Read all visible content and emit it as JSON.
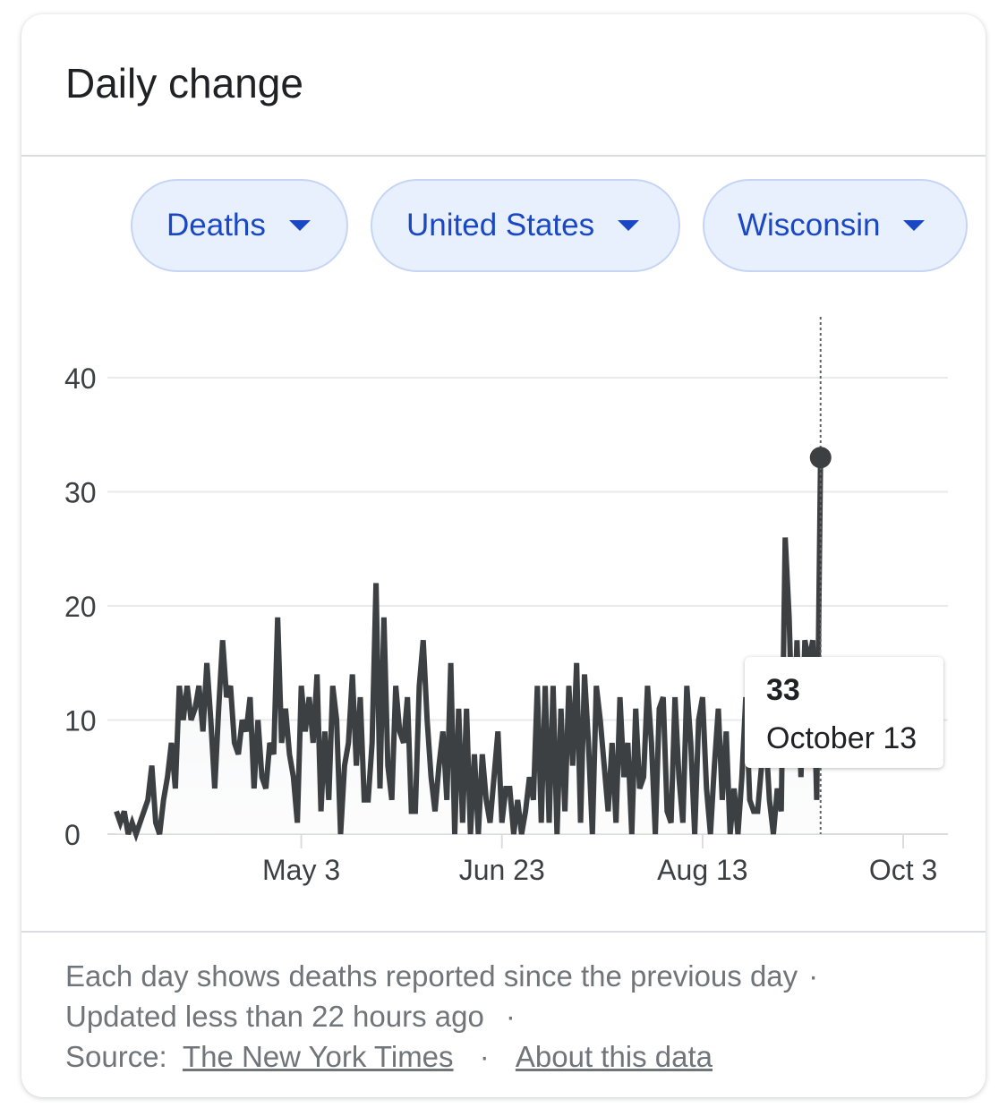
{
  "card": {
    "title": "Daily change"
  },
  "filters": {
    "metric": "Deaths",
    "country": "United States",
    "region": "Wisconsin"
  },
  "tooltip": {
    "value": "33",
    "date": "October 13"
  },
  "footer": {
    "line1": "Each day shows deaths reported since the previous day",
    "line2": "Updated less than 22 hours ago",
    "source_label": "Source:",
    "source_link": "The New York Times",
    "about_link": "About this data",
    "separator": "·"
  },
  "colors": {
    "line": "#3c4043",
    "chip_bg": "#e8f0fe",
    "chip_text": "#1a47c4",
    "grid": "#e8eaed"
  },
  "chart_data": {
    "type": "line",
    "x_ticks": [
      "May 3",
      "Jun 23",
      "Aug 13",
      "Oct 3"
    ],
    "y_ticks": [
      "0",
      "10",
      "20",
      "30",
      "40"
    ],
    "ylim": [
      0,
      40
    ],
    "grid": true,
    "x_start": "2020-03-17",
    "x_end": "2020-10-13",
    "series": [
      {
        "values": [
          2,
          1,
          2,
          0,
          1,
          0,
          1,
          2,
          3,
          6,
          1,
          0,
          3,
          5,
          8,
          4,
          13,
          10,
          13,
          10,
          11,
          13,
          9,
          15,
          10,
          4,
          11,
          17,
          12,
          13,
          8,
          7,
          10,
          9,
          12,
          4,
          10,
          5,
          4,
          8,
          7,
          19,
          8,
          11,
          7,
          5,
          1,
          13,
          9,
          12,
          8,
          14,
          2,
          9,
          3,
          13,
          10,
          0,
          6,
          8,
          14,
          6,
          12,
          3,
          3,
          8,
          22,
          4,
          19,
          6,
          3,
          13,
          9,
          8,
          12,
          2,
          2,
          13,
          17,
          10,
          5,
          2,
          6,
          9,
          3,
          15,
          0,
          11,
          1,
          11,
          0,
          7,
          0,
          7,
          3,
          1,
          5,
          9,
          1,
          4,
          4,
          0,
          3,
          0,
          2,
          5,
          3,
          13,
          1,
          13,
          1,
          13,
          0,
          11,
          2,
          13,
          6,
          15,
          1,
          14,
          8,
          0,
          13,
          10,
          6,
          2,
          8,
          1,
          12,
          5,
          8,
          0,
          11,
          4,
          5,
          13,
          8,
          0,
          11,
          12,
          2,
          1,
          12,
          5,
          1,
          13,
          8,
          0,
          10,
          12,
          4,
          0,
          6,
          11,
          3,
          9,
          0,
          4,
          0,
          5,
          12,
          3,
          2,
          2,
          6,
          9,
          3,
          0,
          4,
          2,
          26,
          19,
          7,
          17,
          5,
          17,
          15,
          17,
          3,
          33
        ]
      }
    ]
  }
}
